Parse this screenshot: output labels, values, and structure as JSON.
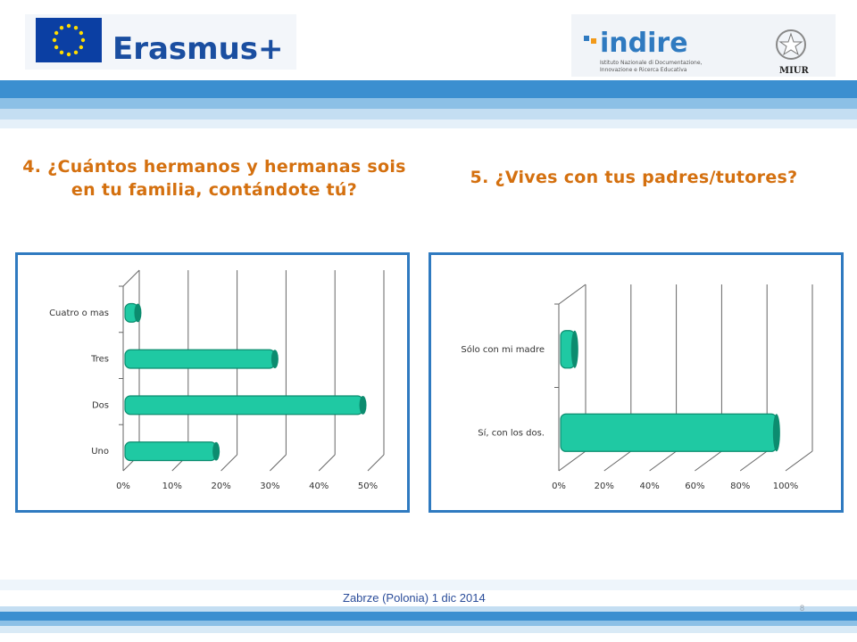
{
  "header": {
    "erasmus_text": "Erasmus+",
    "indire_text": "indire",
    "indire_subtitle_1": "Istituto Nazionale di Documentazione,",
    "indire_subtitle_2": "Innovazione e Ricerca Educativa",
    "miur_text": "MIUR"
  },
  "colors": {
    "title": "#d4700f",
    "panel_border": "#2f7ac0",
    "bar_fill": "#1fc9a3",
    "bar_edge": "#0c8c6f",
    "eu_blue": "#0b3fa3",
    "eu_star": "#ffdd00",
    "footer_text": "#2b4d9a"
  },
  "chart_data": [
    {
      "type": "bar",
      "orientation": "horizontal",
      "title": "4. ¿Cuántos hermanos y hermanas sois en tu familia, contándote tú?",
      "categories": [
        "Uno",
        "Dos",
        "Tres",
        "Cuatro o mas"
      ],
      "values": [
        19,
        49,
        31,
        3
      ],
      "xlim": [
        0,
        50
      ],
      "x_ticks": [
        "0%",
        "10%",
        "20%",
        "30%",
        "40%",
        "50%"
      ],
      "grid": true,
      "legend": "none"
    },
    {
      "type": "bar",
      "orientation": "horizontal",
      "title": "5. ¿Vives con tus padres/tutores?",
      "categories": [
        "Sí, con los dos.",
        "Sólo con mi madre"
      ],
      "values": [
        96,
        7
      ],
      "xlim": [
        0,
        100
      ],
      "x_ticks": [
        "0%",
        "20%",
        "40%",
        "60%",
        "80%",
        "100%"
      ],
      "grid": true,
      "legend": "none"
    }
  ],
  "footer": {
    "text": "Zabrze (Polonia) 1 dic 2014",
    "page_number": "8"
  }
}
